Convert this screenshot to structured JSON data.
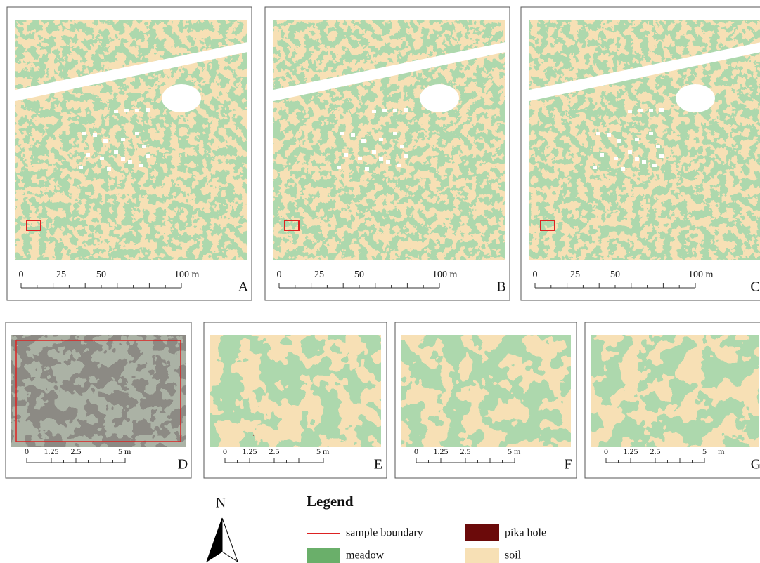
{
  "panels": [
    {
      "label": "A",
      "scale": [
        "0",
        "25",
        "50",
        "100 m"
      ]
    },
    {
      "label": "B",
      "scale": [
        "0",
        "25",
        "50",
        "100 m"
      ]
    },
    {
      "label": "C",
      "scale": [
        "0",
        "25",
        "50",
        "100 m"
      ]
    },
    {
      "label": "D",
      "scale": [
        "0",
        "1.25",
        "2.5",
        "5 m"
      ]
    },
    {
      "label": "E",
      "scale": [
        "0",
        "1.25",
        "2.5",
        "5 m"
      ]
    },
    {
      "label": "F",
      "scale": [
        "0",
        "1.25",
        "2.5",
        "5 m"
      ]
    },
    {
      "label": "G",
      "scale": [
        "0",
        "1.25",
        "2.5",
        "5",
        "m"
      ]
    }
  ],
  "north": "N",
  "legend": {
    "title": "Legend",
    "items": [
      "sample boundary",
      "meadow",
      "pika hole",
      "soil"
    ]
  }
}
